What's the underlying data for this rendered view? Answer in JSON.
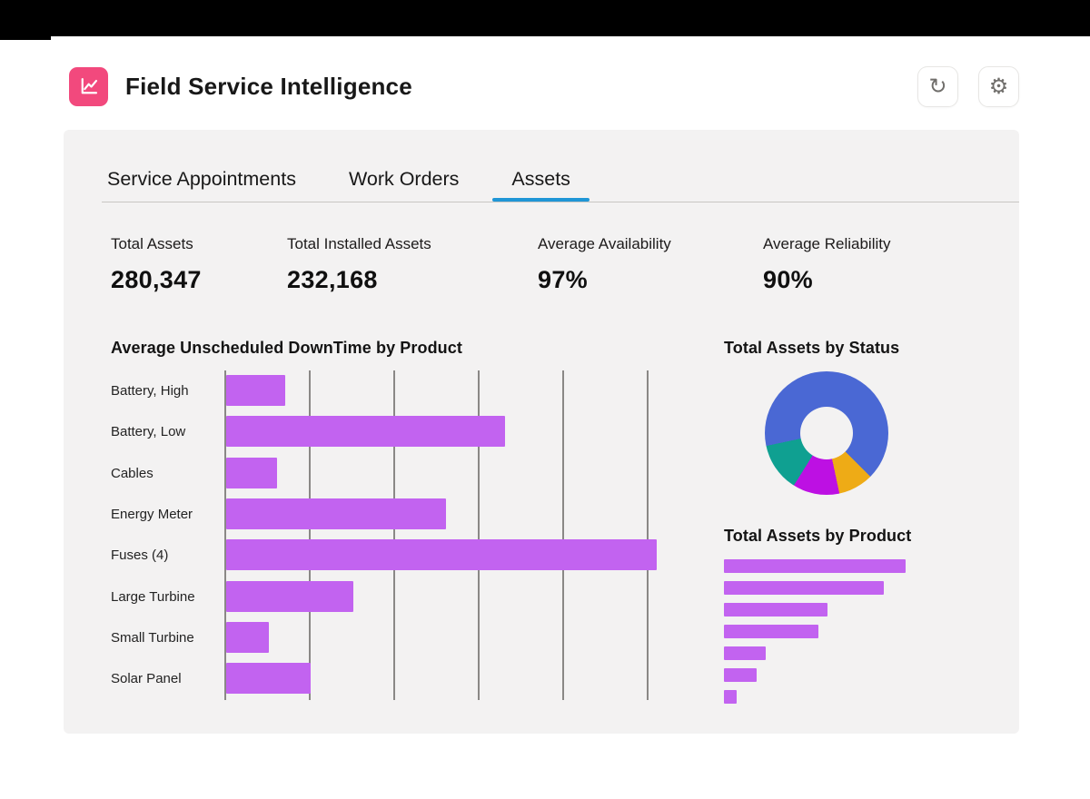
{
  "colors": {
    "card_bg": "#f3f2f2",
    "accent_pink": "#f2497d",
    "tab_active_blue": "#1f96d6",
    "bar_purple": "#c263f0"
  },
  "header": {
    "title": "Field Service Intelligence",
    "refresh_icon": "↻",
    "settings_icon": "⚙"
  },
  "tabs": {
    "items": [
      {
        "label": "Service Appointments",
        "active": false
      },
      {
        "label": "Work Orders",
        "active": false
      },
      {
        "label": "Assets",
        "active": true
      }
    ]
  },
  "kpis": [
    {
      "label": "Total Assets",
      "value": "280,347"
    },
    {
      "label": "Total Installed Assets",
      "value": "232,168"
    },
    {
      "label": "Average Availability",
      "value": "97%"
    },
    {
      "label": "Average Reliability",
      "value": "90%"
    }
  ],
  "chart_data": [
    {
      "type": "bar",
      "orientation": "horizontal",
      "title": "Average Unscheduled DownTime by Product",
      "categories": [
        "Battery, High",
        "Battery, Low",
        "Cables",
        "Energy Meter",
        "Fuses (4)",
        "Large Turbine",
        "Small Turbine",
        "Solar Panel"
      ],
      "values": [
        0.7,
        3.3,
        0.6,
        2.6,
        5.1,
        1.5,
        0.5,
        1.0
      ],
      "xlim": [
        0,
        5.2
      ],
      "gridlines": 6,
      "grid": true,
      "axis_tick_labels_visible": false,
      "bar_color": "#c263f0",
      "grid_color": "#8a8886"
    },
    {
      "type": "pie",
      "donut": true,
      "title": "Total Assets by Status",
      "legend_visible": false,
      "segments": [
        {
          "color": "#4a68d4",
          "start_deg": 0,
          "end_deg": 135,
          "percent": 37.5
        },
        {
          "color": "#eeab16",
          "start_deg": 135,
          "end_deg": 168,
          "percent": 9.2
        },
        {
          "color": "#bd10e3",
          "start_deg": 168,
          "end_deg": 212,
          "percent": 12.2
        },
        {
          "color": "#0fa091",
          "start_deg": 212,
          "end_deg": 258,
          "percent": 12.8
        },
        {
          "color": "#4a68d4",
          "start_deg": 258,
          "end_deg": 360,
          "percent": 28.3
        }
      ]
    },
    {
      "type": "bar",
      "orientation": "horizontal",
      "title": "Total Assets by Product",
      "category_labels_visible": false,
      "values": [
        100,
        88,
        57,
        52,
        23,
        18,
        7
      ],
      "value_unit": "percent-of-longest-bar",
      "bar_color": "#c263f0"
    }
  ]
}
